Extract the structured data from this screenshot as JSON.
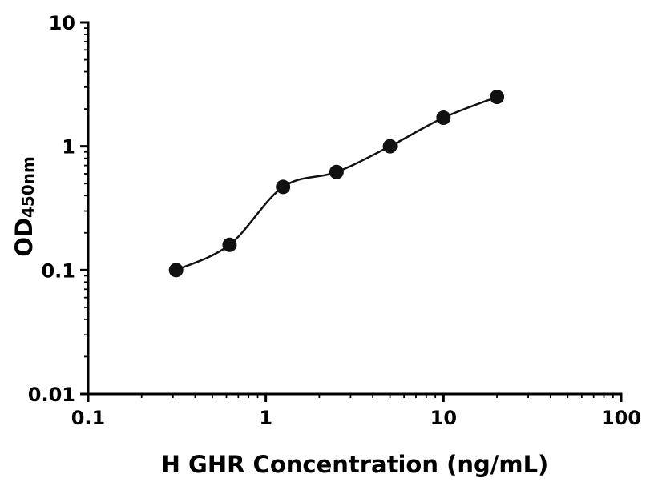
{
  "figure": {
    "background": "#ffffff"
  },
  "chart_data": {
    "type": "scatter",
    "title": "",
    "xlabel": "H GHR Concentration (ng/mL)",
    "ylabel_main": "OD",
    "ylabel_sub": "450nm",
    "x": [
      0.3125,
      0.625,
      1.25,
      2.5,
      5,
      10,
      20
    ],
    "y": [
      0.1,
      0.16,
      0.47,
      0.62,
      1.0,
      1.7,
      2.5
    ],
    "xscale": "log",
    "yscale": "log",
    "xlim": [
      0.1,
      100
    ],
    "ylim": [
      0.01,
      10
    ],
    "xticks": [
      0.1,
      1,
      10,
      100
    ],
    "xtick_labels": [
      "0.1",
      "1",
      "10",
      "100"
    ],
    "yticks": [
      0.01,
      0.1,
      1,
      10
    ],
    "ytick_labels": [
      "0.01",
      "0.1",
      "1",
      "10"
    ],
    "grid": false,
    "legend": null,
    "marker_color": "#111111",
    "line_color": "#111111",
    "axis_color": "#000000",
    "marker_radius": 9,
    "curve_width": 2.5
  }
}
